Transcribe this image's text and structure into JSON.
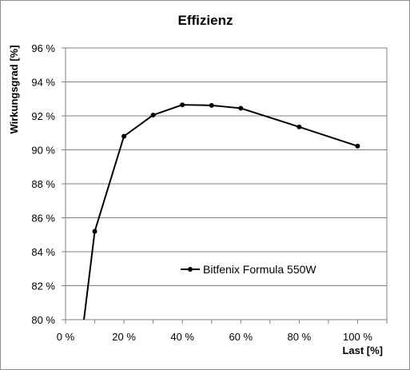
{
  "chart_data": {
    "type": "line",
    "title": "Effizienz",
    "xlabel": "Last [%]",
    "ylabel": "Wirkungsgrad [%]",
    "xlim": [
      0,
      110
    ],
    "ylim": [
      80,
      96
    ],
    "x_ticks": [
      0,
      20,
      40,
      60,
      80,
      100
    ],
    "x_tick_labels": [
      "0 %",
      "20 %",
      "40 %",
      "60 %",
      "80 %",
      "100 %"
    ],
    "y_ticks": [
      80,
      82,
      84,
      86,
      88,
      90,
      92,
      94,
      96
    ],
    "y_tick_labels": [
      "80 %",
      "82 %",
      "84 %",
      "86 %",
      "88 %",
      "90 %",
      "92 %",
      "94 %",
      "96 %"
    ],
    "grid": "horizontal",
    "legend_position": "inside-lower-center",
    "series": [
      {
        "name": "Bitfenix Formula 550W",
        "color": "#000000",
        "x": [
          10,
          20,
          30,
          40,
          50,
          60,
          80,
          100
        ],
        "y": [
          85.2,
          90.8,
          92.05,
          92.65,
          92.62,
          92.45,
          91.35,
          90.22
        ],
        "segment_start": {
          "x": 6.3,
          "y": 80
        }
      }
    ]
  }
}
